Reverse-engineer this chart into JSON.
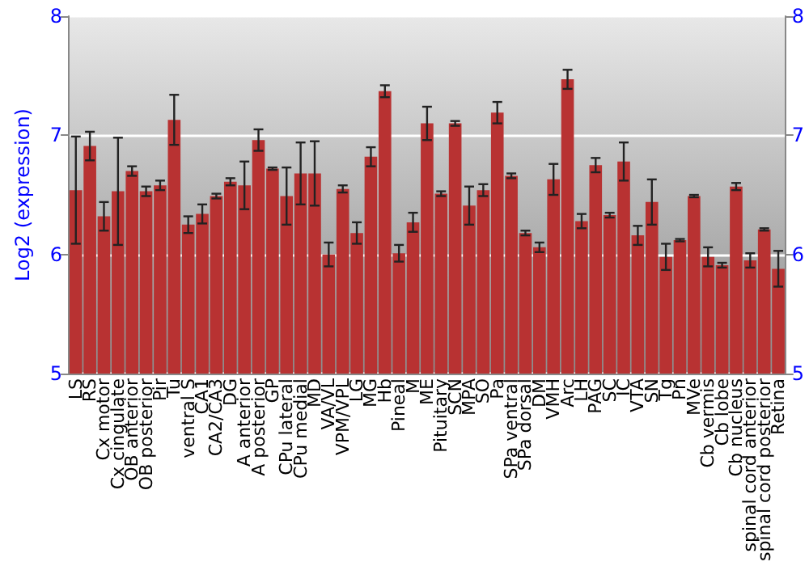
{
  "chart_data": {
    "type": "bar",
    "ylabel": "Log2 (expression)",
    "categories": [
      "LS",
      "RS",
      "Cx motor",
      "Cx cingulate",
      "OB anterior",
      "OB posterior",
      "Pir",
      "Tu",
      "ventral S",
      "CA1",
      "CA2/CA3",
      "DG",
      "A anterior",
      "A posterior",
      "GP",
      "CPu lateral",
      "CPu medial",
      "MD",
      "VA/VL",
      "VPM/VPL",
      "LG",
      "MG",
      "Hb",
      "Pineal",
      "M",
      "ME",
      "Pituitary",
      "SCN",
      "MPA",
      "SO",
      "Pa",
      "SPa ventral",
      "SPa dorsal",
      "DM",
      "VMH",
      "Arc",
      "LH",
      "PAG",
      "SC",
      "IC",
      "VTA",
      "SN",
      "Tg",
      "Pn",
      "MVe",
      "Cb vermis",
      "Cb lobe",
      "Cb nucleus",
      "spinal cord anterior",
      "spinal cord posterior",
      "Retina"
    ],
    "values": [
      6.54,
      6.91,
      6.32,
      6.53,
      6.7,
      6.53,
      6.58,
      7.13,
      6.25,
      6.34,
      6.49,
      6.61,
      6.58,
      6.96,
      6.72,
      6.49,
      6.68,
      6.68,
      6.0,
      6.55,
      6.18,
      6.82,
      7.37,
      6.01,
      6.27,
      7.1,
      6.51,
      7.1,
      6.41,
      6.54,
      7.19,
      6.66,
      6.18,
      6.06,
      6.63,
      7.47,
      6.28,
      6.75,
      6.33,
      6.78,
      6.16,
      6.44,
      5.98,
      6.12,
      6.49,
      5.98,
      5.91,
      6.57,
      5.95,
      6.21,
      5.88
    ],
    "errors": [
      0.45,
      0.12,
      0.12,
      0.45,
      0.04,
      0.04,
      0.04,
      0.21,
      0.07,
      0.08,
      0.02,
      0.03,
      0.2,
      0.09,
      0.01,
      0.24,
      0.26,
      0.27,
      0.1,
      0.03,
      0.09,
      0.08,
      0.05,
      0.07,
      0.08,
      0.14,
      0.02,
      0.02,
      0.16,
      0.05,
      0.09,
      0.02,
      0.02,
      0.04,
      0.13,
      0.08,
      0.06,
      0.06,
      0.02,
      0.16,
      0.08,
      0.19,
      0.11,
      0.01,
      0.01,
      0.08,
      0.02,
      0.03,
      0.06,
      0.01,
      0.15
    ],
    "color": "#b83232",
    "ylim": [
      5,
      8
    ],
    "yticks": [
      5,
      6,
      7,
      8
    ],
    "y2lim": [
      5,
      8
    ],
    "y2ticks": [
      5,
      6,
      7,
      8
    ],
    "grid": "y"
  }
}
